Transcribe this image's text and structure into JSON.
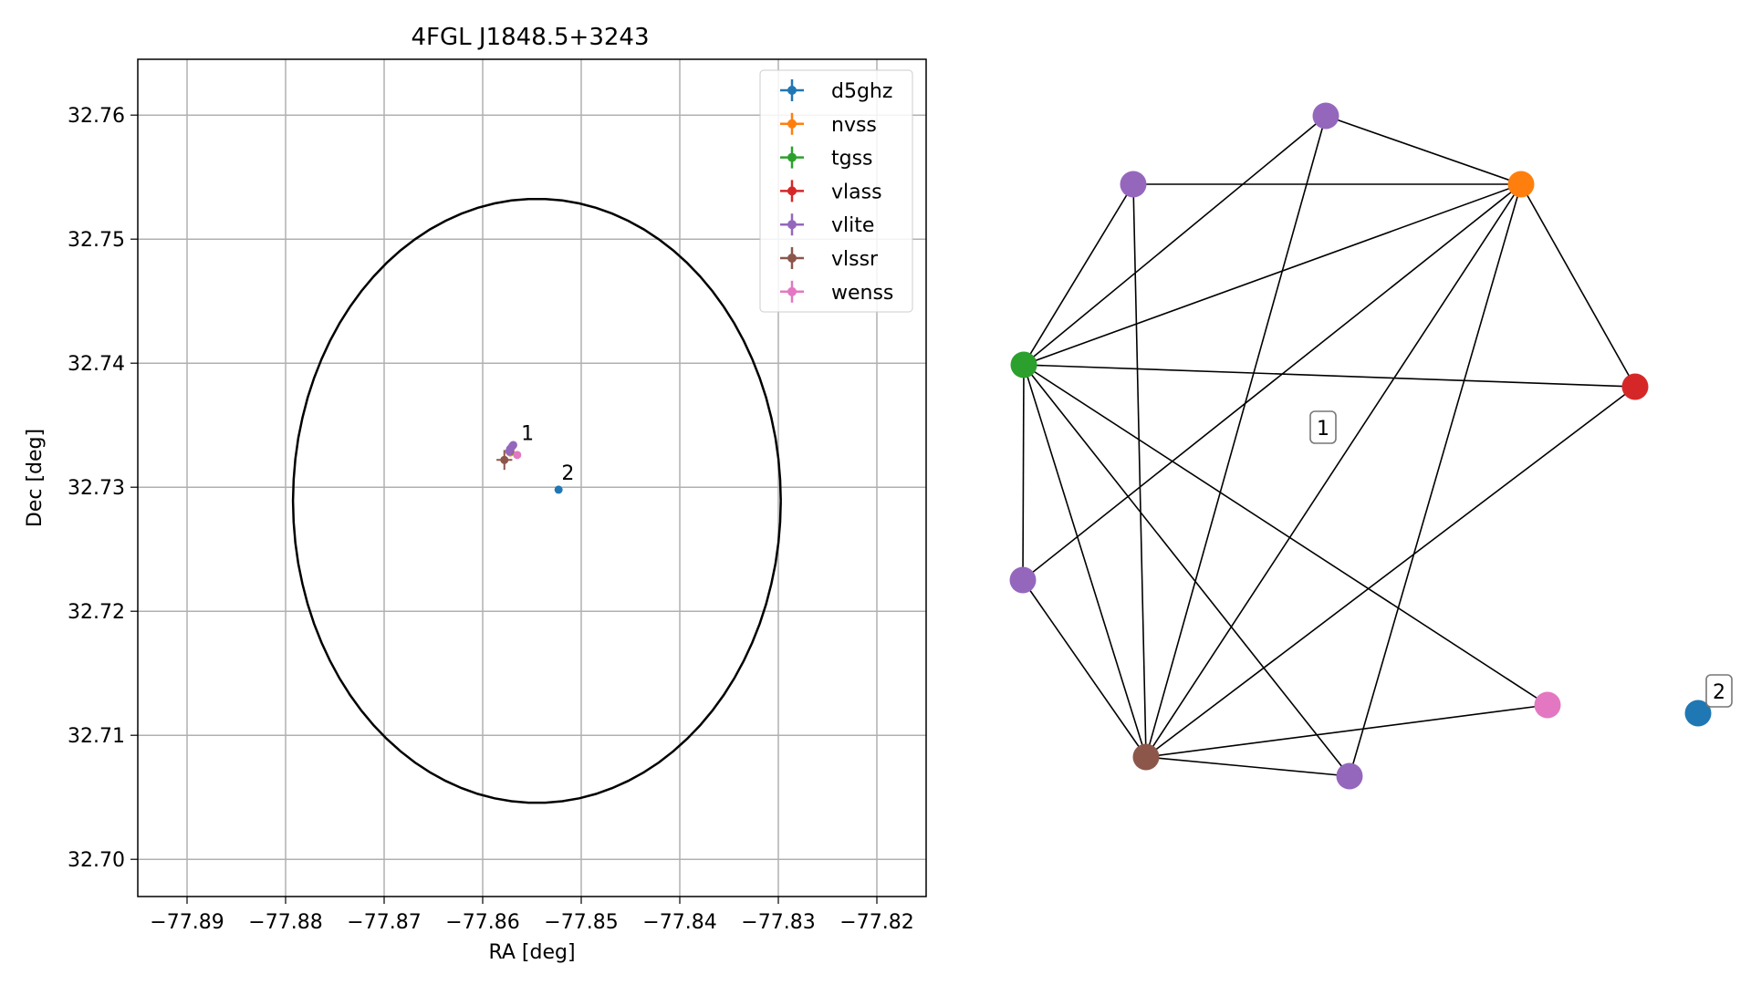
{
  "colors": {
    "d5ghz": "#1f77b4",
    "nvss": "#ff7f0e",
    "tgss": "#2ca02c",
    "vlass": "#d62728",
    "vlite": "#9467bd",
    "vlssr": "#8c564b",
    "wenss": "#e377c2",
    "grid": "#b0b0b0",
    "edge": "#000000"
  },
  "chart_data": [
    {
      "type": "scatter",
      "title": "4FGL J1848.5+3243",
      "xlabel": "RA [deg]",
      "ylabel": "Dec [deg]",
      "xlim": [
        -77.895,
        -77.815
      ],
      "ylim": [
        32.697,
        32.7645
      ],
      "grid": true,
      "legend_position": "upper right",
      "xticks": [
        -77.89,
        -77.88,
        -77.87,
        -77.86,
        -77.85,
        -77.84,
        -77.83,
        -77.82
      ],
      "xtick_labels": [
        "−77.89",
        "−77.88",
        "−77.87",
        "−77.86",
        "−77.85",
        "−77.84",
        "−77.83",
        "−77.82"
      ],
      "yticks": [
        32.7,
        32.71,
        32.72,
        32.73,
        32.74,
        32.75,
        32.76
      ],
      "ytick_labels": [
        "32.70",
        "32.71",
        "32.72",
        "32.73",
        "32.74",
        "32.75",
        "32.76"
      ],
      "ellipse": {
        "center": [
          -77.8545,
          32.7289
        ],
        "ra_semi_axis": 0.02475,
        "dec_semi_axis": 0.02435
      },
      "series": [
        {
          "name": "d5ghz",
          "points": [
            {
              "x": -77.8523,
              "y": 32.7298,
              "xerr": 0.0,
              "yerr": 0.0
            }
          ]
        },
        {
          "name": "nvss",
          "points": [
            {
              "x": -77.8572,
              "y": 32.7328,
              "xerr": 0.0002,
              "yerr": 0.0002
            }
          ]
        },
        {
          "name": "tgss",
          "points": [
            {
              "x": -77.8572,
              "y": 32.7329,
              "xerr": 0.0002,
              "yerr": 0.0002
            }
          ]
        },
        {
          "name": "vlass",
          "points": [
            {
              "x": -77.8572,
              "y": 32.733,
              "xerr": 0.0001,
              "yerr": 0.0001
            }
          ]
        },
        {
          "name": "vlite",
          "points": [
            {
              "x": -77.8569,
              "y": 32.7334,
              "xerr": 0.0002,
              "yerr": 0.0003
            },
            {
              "x": -77.8573,
              "y": 32.7329,
              "xerr": 0.0002,
              "yerr": 0.0003
            },
            {
              "x": -77.857,
              "y": 32.7333,
              "xerr": 0.0002,
              "yerr": 0.0002
            },
            {
              "x": -77.8572,
              "y": 32.7331,
              "xerr": 0.0002,
              "yerr": 0.0002
            }
          ]
        },
        {
          "name": "vlssr",
          "points": [
            {
              "x": -77.8578,
              "y": 32.7322,
              "xerr": 0.0008,
              "yerr": 0.0008
            }
          ]
        },
        {
          "name": "wenss",
          "points": [
            {
              "x": -77.8565,
              "y": 32.7326,
              "xerr": 0.0002,
              "yerr": 0.0002
            }
          ]
        }
      ],
      "annotations": [
        {
          "text": "1",
          "x": -77.8561,
          "y": 32.7338
        },
        {
          "text": "2",
          "x": -77.852,
          "y": 32.7306
        }
      ]
    },
    {
      "type": "network",
      "nodes": [
        {
          "id": "vlite_a",
          "catalog": "vlite"
        },
        {
          "id": "vlite_b",
          "catalog": "vlite"
        },
        {
          "id": "nvss",
          "catalog": "nvss"
        },
        {
          "id": "tgss",
          "catalog": "tgss"
        },
        {
          "id": "vlass",
          "catalog": "vlass"
        },
        {
          "id": "vlite_c",
          "catalog": "vlite"
        },
        {
          "id": "vlssr",
          "catalog": "vlssr"
        },
        {
          "id": "vlite_d",
          "catalog": "vlite"
        },
        {
          "id": "wenss",
          "catalog": "wenss"
        },
        {
          "id": "d5ghz",
          "catalog": "d5ghz"
        }
      ],
      "edges": [
        [
          "vlite_a",
          "nvss"
        ],
        [
          "vlite_a",
          "tgss"
        ],
        [
          "vlite_a",
          "vlssr"
        ],
        [
          "vlite_b",
          "nvss"
        ],
        [
          "vlite_b",
          "tgss"
        ],
        [
          "vlite_b",
          "vlssr"
        ],
        [
          "nvss",
          "tgss"
        ],
        [
          "nvss",
          "vlass"
        ],
        [
          "nvss",
          "vlite_c"
        ],
        [
          "nvss",
          "vlssr"
        ],
        [
          "nvss",
          "vlite_d"
        ],
        [
          "tgss",
          "vlass"
        ],
        [
          "tgss",
          "vlite_c"
        ],
        [
          "tgss",
          "vlssr"
        ],
        [
          "tgss",
          "vlite_d"
        ],
        [
          "tgss",
          "wenss"
        ],
        [
          "vlass",
          "vlssr"
        ],
        [
          "vlite_c",
          "vlssr"
        ],
        [
          "vlssr",
          "vlite_d"
        ],
        [
          "vlssr",
          "wenss"
        ]
      ],
      "labels": [
        {
          "text": "1",
          "group": "component-1"
        },
        {
          "text": "2",
          "group": "component-2"
        }
      ]
    }
  ]
}
